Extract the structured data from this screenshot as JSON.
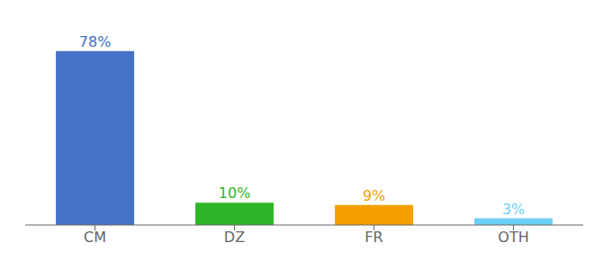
{
  "chart_data": {
    "type": "bar",
    "categories": [
      "CM",
      "DZ",
      "FR",
      "OTH"
    ],
    "values": [
      78,
      10,
      9,
      3
    ],
    "value_labels": [
      "78%",
      "10%",
      "9%",
      "3%"
    ],
    "data_labels": true,
    "colors": [
      "#4472c4",
      "#2db529",
      "#f5a000",
      "#6ecff6"
    ],
    "ylim": [
      0,
      88
    ],
    "tick_labels": "x",
    "grid": false
  }
}
